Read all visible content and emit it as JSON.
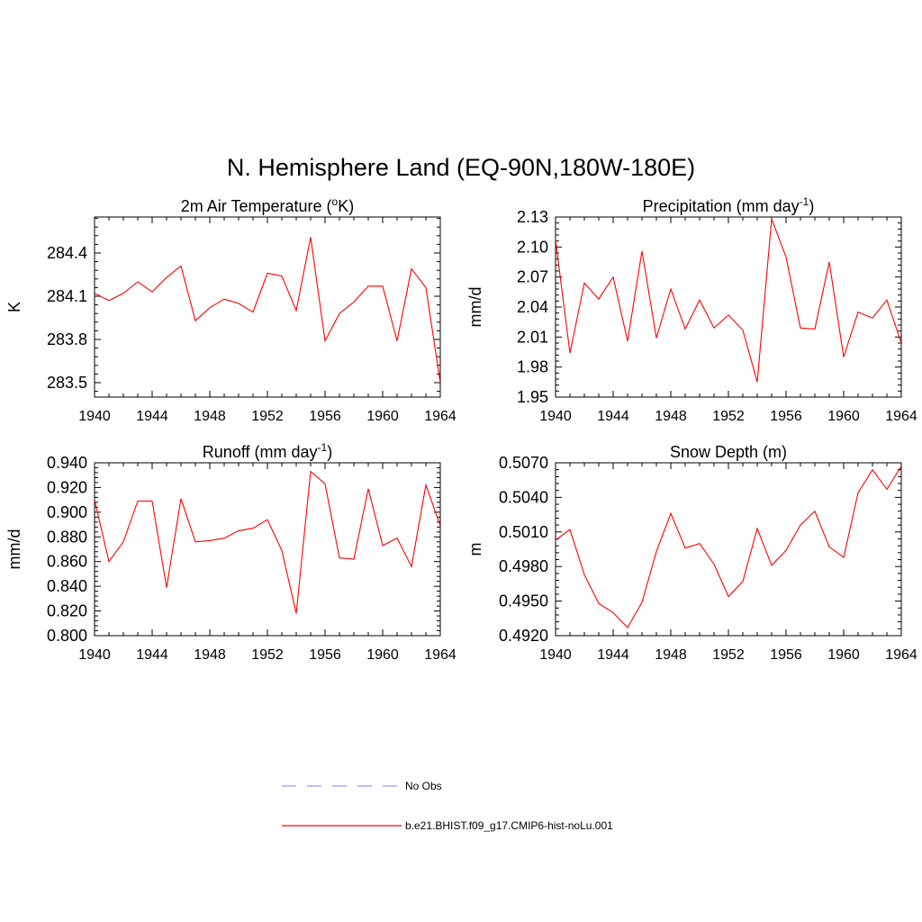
{
  "title": "N. Hemisphere Land (EQ-90N,180W-180E)",
  "legend": {
    "obs_label": "No Obs",
    "obs_color": "#9999ff",
    "case_label": "b.e21.BHIST.f09_g17.CMIP6-hist-noLu.001",
    "case_color": "#ff0000"
  },
  "chart_data": [
    {
      "type": "line",
      "title_main": "2m Air Temperature (",
      "title_sup": "o",
      "title_tail": "K)",
      "ylabel": "K",
      "xlim": [
        1940,
        1964
      ],
      "ylim": [
        283.4,
        284.65
      ],
      "yticks": [
        283.5,
        283.8,
        284.1,
        284.4
      ],
      "ytick_labels": [
        "283.5",
        "283.8",
        "284.1",
        "284.4"
      ],
      "xticks": [
        1940,
        1944,
        1948,
        1952,
        1956,
        1960,
        1964
      ],
      "xtick_labels": [
        "1940",
        "1944",
        "1948",
        "1952",
        "1956",
        "1960",
        "1964"
      ],
      "x": [
        1940,
        1941,
        1942,
        1943,
        1944,
        1945,
        1946,
        1947,
        1948,
        1949,
        1950,
        1951,
        1952,
        1953,
        1954,
        1955,
        1956,
        1957,
        1958,
        1959,
        1960,
        1961,
        1962,
        1963,
        1964
      ],
      "y": [
        284.12,
        284.07,
        284.12,
        284.2,
        284.13,
        284.23,
        284.31,
        283.93,
        284.02,
        284.08,
        284.05,
        283.99,
        284.26,
        284.24,
        284.0,
        284.51,
        283.79,
        283.98,
        284.06,
        284.17,
        284.17,
        283.79,
        284.29,
        284.16,
        283.5
      ]
    },
    {
      "type": "line",
      "title_main": "Precipitation (mm day",
      "title_sup": "-1",
      "title_tail": ")",
      "ylabel": "mm/d",
      "xlim": [
        1940,
        1964
      ],
      "ylim": [
        1.95,
        2.13
      ],
      "yticks": [
        1.95,
        1.98,
        2.01,
        2.04,
        2.07,
        2.1,
        2.13
      ],
      "ytick_labels": [
        "1.95",
        "1.98",
        "2.01",
        "2.04",
        "2.07",
        "2.10",
        "2.13"
      ],
      "xticks": [
        1940,
        1944,
        1948,
        1952,
        1956,
        1960,
        1964
      ],
      "xtick_labels": [
        "1940",
        "1944",
        "1948",
        "1952",
        "1956",
        "1960",
        "1964"
      ],
      "x": [
        1940,
        1941,
        1942,
        1943,
        1944,
        1945,
        1946,
        1947,
        1948,
        1949,
        1950,
        1951,
        1952,
        1953,
        1954,
        1955,
        1956,
        1957,
        1958,
        1959,
        1960,
        1961,
        1962,
        1963,
        1964
      ],
      "y": [
        2.107,
        1.994,
        2.064,
        2.048,
        2.07,
        2.006,
        2.096,
        2.009,
        2.058,
        2.018,
        2.047,
        2.019,
        2.032,
        2.017,
        1.965,
        2.128,
        2.09,
        2.019,
        2.018,
        2.085,
        1.99,
        2.035,
        2.029,
        2.047,
        2.004
      ]
    },
    {
      "type": "line",
      "title_main": "Runoff (mm day",
      "title_sup": "-1",
      "title_tail": ")",
      "ylabel": "mm/d",
      "xlim": [
        1940,
        1964
      ],
      "ylim": [
        0.8,
        0.94
      ],
      "yticks": [
        0.8,
        0.82,
        0.84,
        0.86,
        0.88,
        0.9,
        0.92,
        0.94
      ],
      "ytick_labels": [
        "0.800",
        "0.820",
        "0.840",
        "0.860",
        "0.880",
        "0.900",
        "0.920",
        "0.940"
      ],
      "xticks": [
        1940,
        1944,
        1948,
        1952,
        1956,
        1960,
        1964
      ],
      "xtick_labels": [
        "1940",
        "1944",
        "1948",
        "1952",
        "1956",
        "1960",
        "1964"
      ],
      "x": [
        1940,
        1941,
        1942,
        1943,
        1944,
        1945,
        1946,
        1947,
        1948,
        1949,
        1950,
        1951,
        1952,
        1953,
        1954,
        1955,
        1956,
        1957,
        1958,
        1959,
        1960,
        1961,
        1962,
        1963,
        1964
      ],
      "y": [
        0.91,
        0.86,
        0.876,
        0.909,
        0.909,
        0.839,
        0.911,
        0.876,
        0.877,
        0.879,
        0.885,
        0.887,
        0.894,
        0.869,
        0.818,
        0.933,
        0.923,
        0.863,
        0.862,
        0.919,
        0.873,
        0.879,
        0.856,
        0.922,
        0.889
      ]
    },
    {
      "type": "line",
      "title_main": "Snow Depth (m)",
      "title_sup": "",
      "title_tail": "",
      "ylabel": "m",
      "xlim": [
        1940,
        1964
      ],
      "ylim": [
        0.492,
        0.507
      ],
      "yticks": [
        0.492,
        0.495,
        0.498,
        0.501,
        0.504,
        0.507
      ],
      "ytick_labels": [
        "0.4920",
        "0.4950",
        "0.4980",
        "0.5010",
        "0.5040",
        "0.5070"
      ],
      "xticks": [
        1940,
        1944,
        1948,
        1952,
        1956,
        1960,
        1964
      ],
      "xtick_labels": [
        "1940",
        "1944",
        "1948",
        "1952",
        "1956",
        "1960",
        "1964"
      ],
      "x": [
        1940,
        1941,
        1942,
        1943,
        1944,
        1945,
        1946,
        1947,
        1948,
        1949,
        1950,
        1951,
        1952,
        1953,
        1954,
        1955,
        1956,
        1957,
        1958,
        1959,
        1960,
        1961,
        1962,
        1963,
        1964
      ],
      "y": [
        0.5003,
        0.5012,
        0.4973,
        0.4948,
        0.494,
        0.4927,
        0.4949,
        0.4993,
        0.5026,
        0.4996,
        0.5,
        0.4982,
        0.4954,
        0.4967,
        0.5013,
        0.4981,
        0.4994,
        0.5016,
        0.5028,
        0.4997,
        0.4988,
        0.5044,
        0.5064,
        0.5047,
        0.5067
      ]
    }
  ]
}
